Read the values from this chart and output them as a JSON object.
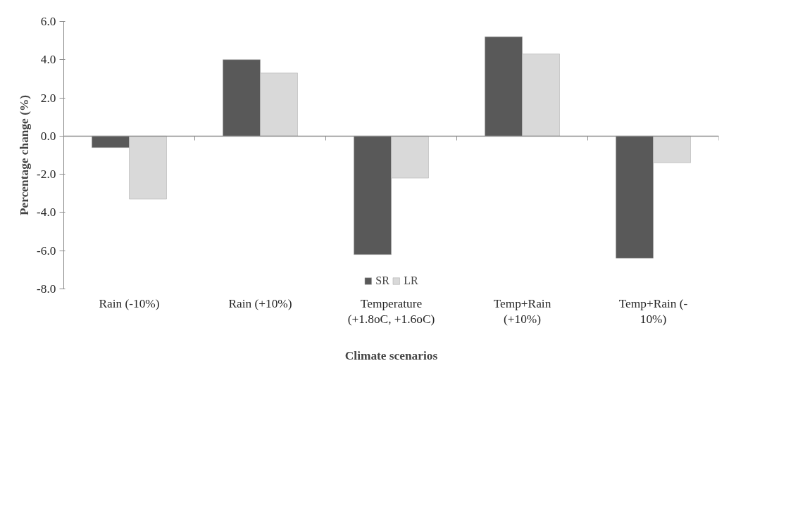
{
  "chart_data": {
    "type": "bar",
    "xlabel": "Climate scenarios",
    "ylabel": "Percentage change (%)",
    "categories": [
      "Rain (-10%)",
      "Rain (+10%)",
      "Temperature\n(+1.8oC, +1.6oC)",
      "Temp+Rain\n(+10%)",
      "Temp+Rain (-\n10%)"
    ],
    "series": [
      {
        "name": "SR",
        "color": "#595959",
        "values": [
          -0.6,
          4.0,
          -6.2,
          5.2,
          -6.4
        ]
      },
      {
        "name": "LR",
        "color": "#d9d9d9",
        "values": [
          -3.3,
          3.3,
          -2.2,
          4.3,
          -1.4
        ]
      }
    ],
    "ylim": [
      -8,
      6
    ],
    "yticks": [
      {
        "value": -8,
        "label": "-8.0"
      },
      {
        "value": -6,
        "label": "-6.0"
      },
      {
        "value": -4,
        "label": "-4.0"
      },
      {
        "value": -2,
        "label": "-2.0"
      },
      {
        "value": 0,
        "label": "0.0"
      },
      {
        "value": 2,
        "label": "2.0"
      },
      {
        "value": 4,
        "label": "4.0"
      },
      {
        "value": 6,
        "label": "6.0"
      }
    ],
    "legend": "bottom"
  }
}
